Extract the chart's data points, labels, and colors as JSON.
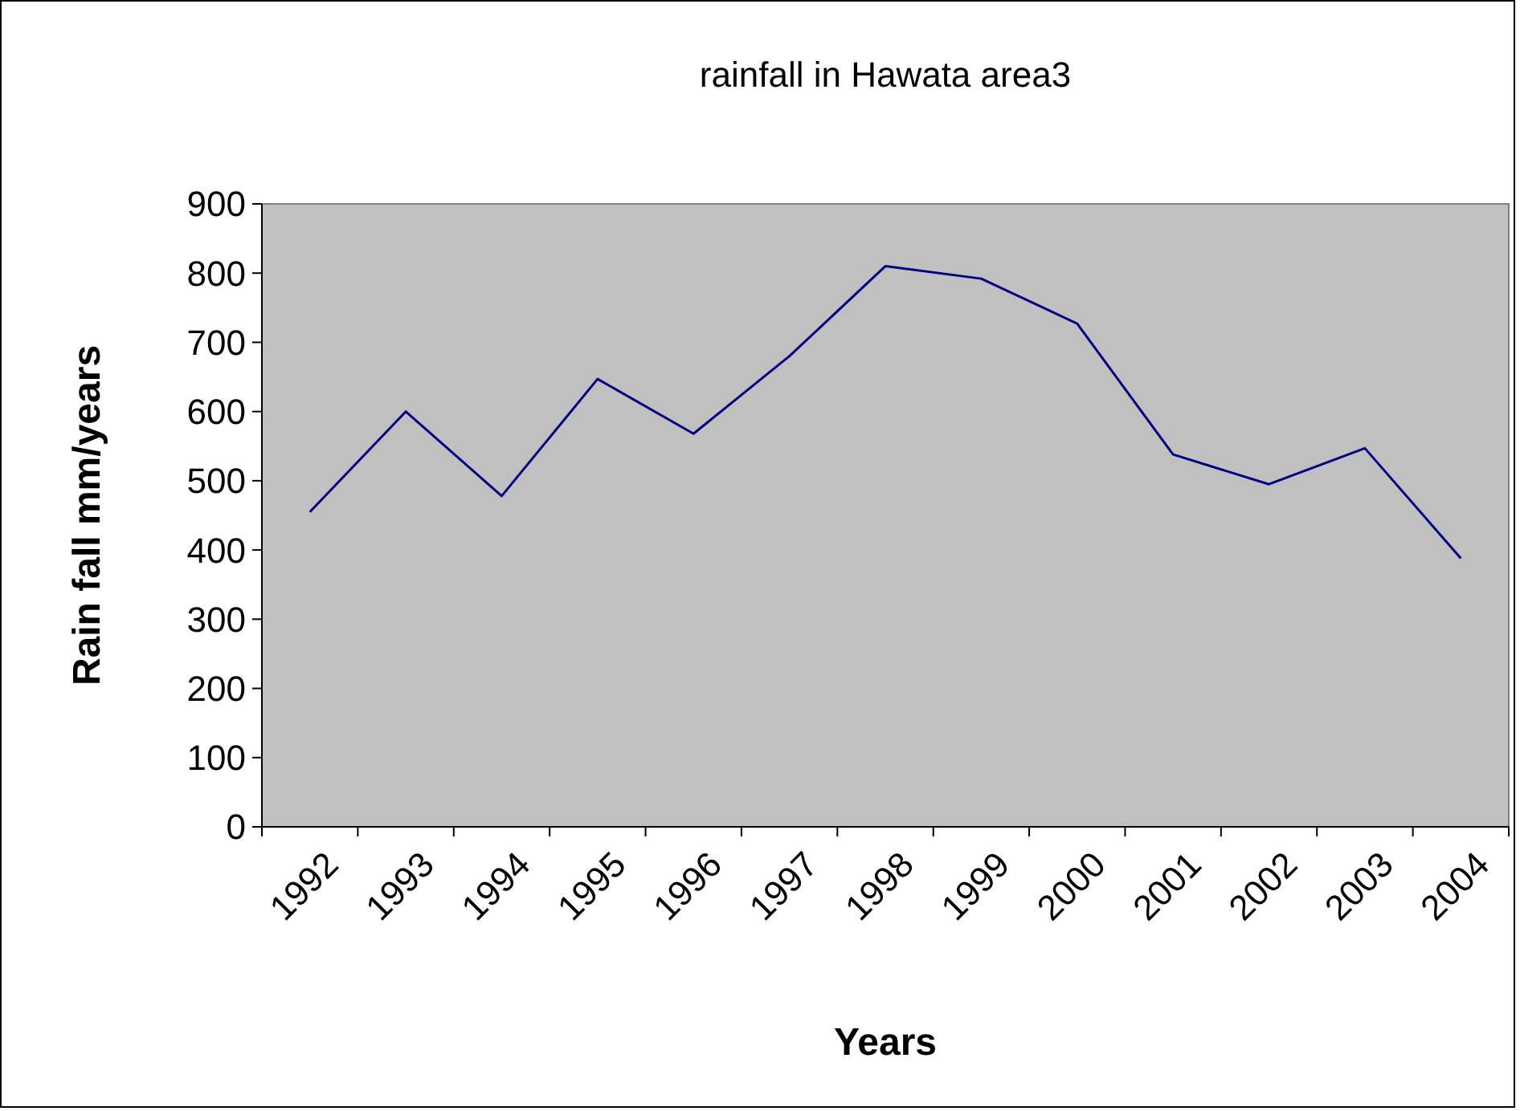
{
  "chart_data": {
    "type": "line",
    "title": "rainfall in Hawata area3",
    "xlabel": "Years",
    "ylabel": "Rain fall mm/years",
    "categories": [
      "1992",
      "1993",
      "1994",
      "1995",
      "1996",
      "1997",
      "1998",
      "1999",
      "2000",
      "2001",
      "2002",
      "2003",
      "2004"
    ],
    "series": [
      {
        "color": "#000080",
        "values": [
          455,
          600,
          478,
          647,
          568,
          680,
          810,
          792,
          727,
          538,
          495,
          547,
          388
        ]
      }
    ],
    "ylim": [
      0,
      900
    ],
    "yticks": [
      0,
      100,
      200,
      300,
      400,
      500,
      600,
      700,
      800,
      900
    ],
    "grid": false,
    "marker": "none",
    "line_style": "solid"
  }
}
